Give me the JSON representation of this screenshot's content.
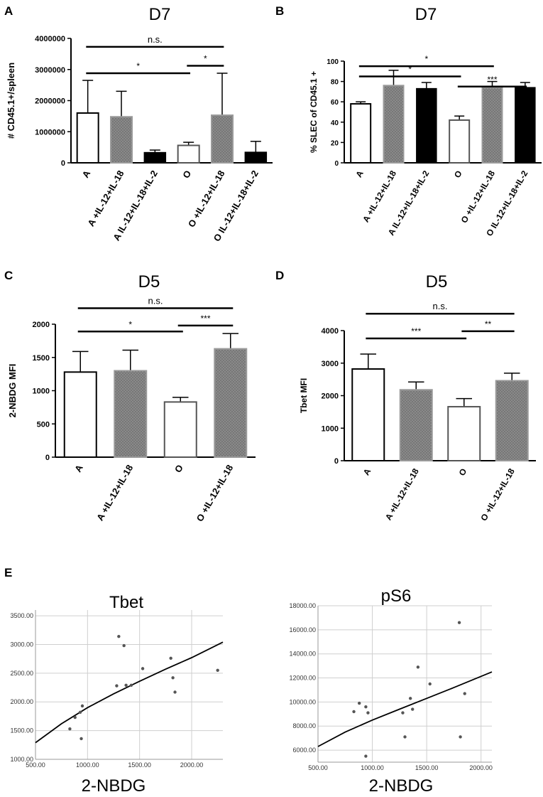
{
  "panels": [
    {
      "id": "A",
      "label": "A"
    },
    {
      "id": "B",
      "label": "B"
    },
    {
      "id": "C",
      "label": "C"
    },
    {
      "id": "D",
      "label": "D"
    },
    {
      "id": "E",
      "label": "E"
    }
  ],
  "chart_data": [
    {
      "panel": "A",
      "type": "bar",
      "title": "D7",
      "ylabel": "# CD45.1+/spleen",
      "ylim": [
        0,
        4000000
      ],
      "yticks": [
        0,
        1000000,
        2000000,
        3000000,
        4000000
      ],
      "ytick_labels": [
        "0",
        "1000000",
        "2000000",
        "3000000",
        "4000000"
      ],
      "categories": [
        "A",
        "A +IL-12+IL-18",
        "A IL-12+IL-18+IL-2",
        "O",
        "O +IL-12+IL-18",
        "O IL-12+IL-18+IL-2"
      ],
      "values": [
        1600000,
        1480000,
        330000,
        560000,
        1530000,
        340000
      ],
      "errors": [
        1050000,
        820000,
        80000,
        100000,
        1350000,
        350000
      ],
      "fills": [
        "white",
        "dotted",
        "black",
        "white",
        "dotted",
        "black"
      ],
      "significance": [
        {
          "from": 0,
          "to": 4,
          "label": "n.s.",
          "y": 3730000
        },
        {
          "from": 0,
          "to": 3,
          "label": "*",
          "y": 2880000
        },
        {
          "from": 3,
          "to": 4,
          "label": "*",
          "y": 3120000
        }
      ]
    },
    {
      "panel": "B",
      "type": "bar",
      "title": "D7",
      "ylabel": "% SLEC of CD45.1 +",
      "ylim": [
        0,
        100
      ],
      "yticks": [
        0,
        20,
        40,
        60,
        80,
        100
      ],
      "ytick_labels": [
        "0",
        "20",
        "40",
        "60",
        "80",
        "100"
      ],
      "categories": [
        "A",
        "A +IL-12+IL-18",
        "A IL-12+IL-18+IL-2",
        "O",
        "O +IL-12+IL-18",
        "O IL-12+IL-18+IL-2"
      ],
      "values": [
        58,
        76,
        73,
        42,
        74,
        74
      ],
      "errors": [
        2,
        15,
        6,
        4,
        6,
        5
      ],
      "fills": [
        "white",
        "dotted",
        "black",
        "white",
        "dotted",
        "black"
      ],
      "significance": [
        {
          "from": 0,
          "to": 4,
          "label": "*",
          "y": 95
        },
        {
          "from": 0,
          "to": 3,
          "label": "*",
          "y": 85
        },
        {
          "from": 3,
          "to": 5,
          "label": "***",
          "y": 75
        }
      ]
    },
    {
      "panel": "C",
      "type": "bar",
      "title": "D5",
      "ylabel": "2-NBDG MFI",
      "ylim": [
        0,
        2000
      ],
      "yticks": [
        0,
        500,
        1000,
        1500,
        2000
      ],
      "ytick_labels": [
        "0",
        "500",
        "1000",
        "1500",
        "2000"
      ],
      "categories": [
        "A",
        "A +IL-12+IL-18",
        "O",
        "O +IL-12+IL-18"
      ],
      "values": [
        1280,
        1300,
        830,
        1630
      ],
      "errors": [
        310,
        310,
        70,
        230
      ],
      "fills": [
        "white",
        "dotted",
        "white",
        "dotted"
      ],
      "significance": [
        {
          "from": 0,
          "to": 3,
          "label": "n.s.",
          "y": 2240
        },
        {
          "from": 0,
          "to": 2,
          "label": "*",
          "y": 1890
        },
        {
          "from": 2,
          "to": 3,
          "label": "***",
          "y": 1980
        }
      ]
    },
    {
      "panel": "D",
      "type": "bar",
      "title": "D5",
      "ylabel": "Tbet MFI",
      "ylim": [
        0,
        4000
      ],
      "yticks": [
        0,
        1000,
        2000,
        3000,
        4000
      ],
      "ytick_labels": [
        "0",
        "1000",
        "2000",
        "3000",
        "4000"
      ],
      "categories": [
        "A",
        "A +IL-12+IL-18",
        "O",
        "O +IL-12+IL-18"
      ],
      "values": [
        2820,
        2180,
        1660,
        2460
      ],
      "errors": [
        460,
        240,
        250,
        230
      ],
      "fills": [
        "white",
        "dotted",
        "white",
        "dotted"
      ],
      "significance": [
        {
          "from": 0,
          "to": 3,
          "label": "n.s.",
          "y": 4520
        },
        {
          "from": 0,
          "to": 2,
          "label": "***",
          "y": 3760
        },
        {
          "from": 2,
          "to": 3,
          "label": "**",
          "y": 3980
        }
      ]
    },
    {
      "panel": "E",
      "type": "scatter",
      "title": "Tbet",
      "xlabel": "2-NBDG",
      "xlim": [
        500,
        2300
      ],
      "ylim": [
        1000,
        3600
      ],
      "xticks": [
        500,
        1000,
        1500,
        2000
      ],
      "xtick_labels": [
        "500.00",
        "1000.00",
        "1500.00",
        "2000.00"
      ],
      "yticks": [
        1000,
        1500,
        2000,
        2500,
        3000,
        3500
      ],
      "ytick_labels": [
        "1000.00",
        "1500.00",
        "2000.00",
        "2500.00",
        "3000.00",
        "3500.00"
      ],
      "points": [
        {
          "x": 830,
          "y": 1530
        },
        {
          "x": 880,
          "y": 1730
        },
        {
          "x": 930,
          "y": 1820
        },
        {
          "x": 950,
          "y": 1930
        },
        {
          "x": 940,
          "y": 1360
        },
        {
          "x": 1280,
          "y": 2280
        },
        {
          "x": 1300,
          "y": 3140
        },
        {
          "x": 1350,
          "y": 2980
        },
        {
          "x": 1370,
          "y": 2290
        },
        {
          "x": 1420,
          "y": 2290
        },
        {
          "x": 1530,
          "y": 2580
        },
        {
          "x": 1800,
          "y": 2760
        },
        {
          "x": 1820,
          "y": 2420
        },
        {
          "x": 1840,
          "y": 2170
        },
        {
          "x": 2250,
          "y": 2550
        }
      ],
      "fit_curve": [
        {
          "x": 500,
          "y": 1290
        },
        {
          "x": 750,
          "y": 1620
        },
        {
          "x": 1000,
          "y": 1900
        },
        {
          "x": 1250,
          "y": 2140
        },
        {
          "x": 1500,
          "y": 2360
        },
        {
          "x": 1750,
          "y": 2570
        },
        {
          "x": 2000,
          "y": 2770
        },
        {
          "x": 2300,
          "y": 3040
        }
      ]
    },
    {
      "panel": "E",
      "type": "scatter",
      "title": "pS6",
      "xlabel": "2-NBDG",
      "xlim": [
        500,
        2100
      ],
      "ylim": [
        5000,
        18000
      ],
      "xticks": [
        500,
        1000,
        1500,
        2000
      ],
      "xtick_labels": [
        "500.00",
        "1000.00",
        "1500.00",
        "2000.00"
      ],
      "yticks": [
        6000,
        8000,
        10000,
        12000,
        14000,
        16000,
        18000
      ],
      "ytick_labels": [
        "6000.00",
        "8000.00",
        "10000.00",
        "12000.00",
        "14000.00",
        "16000.00",
        "18000.00"
      ],
      "points": [
        {
          "x": 830,
          "y": 9200
        },
        {
          "x": 880,
          "y": 9900
        },
        {
          "x": 940,
          "y": 9600
        },
        {
          "x": 960,
          "y": 9100
        },
        {
          "x": 940,
          "y": 5500
        },
        {
          "x": 1280,
          "y": 9100
        },
        {
          "x": 1300,
          "y": 7100
        },
        {
          "x": 1350,
          "y": 10300
        },
        {
          "x": 1370,
          "y": 9400
        },
        {
          "x": 1420,
          "y": 12900
        },
        {
          "x": 1530,
          "y": 11500
        },
        {
          "x": 1800,
          "y": 16600
        },
        {
          "x": 1810,
          "y": 7100
        },
        {
          "x": 1850,
          "y": 10700
        }
      ],
      "fit_curve": [
        {
          "x": 500,
          "y": 6300
        },
        {
          "x": 750,
          "y": 7500
        },
        {
          "x": 1000,
          "y": 8500
        },
        {
          "x": 1250,
          "y": 9400
        },
        {
          "x": 1500,
          "y": 10300
        },
        {
          "x": 1750,
          "y": 11200
        },
        {
          "x": 2100,
          "y": 12500
        }
      ]
    }
  ]
}
